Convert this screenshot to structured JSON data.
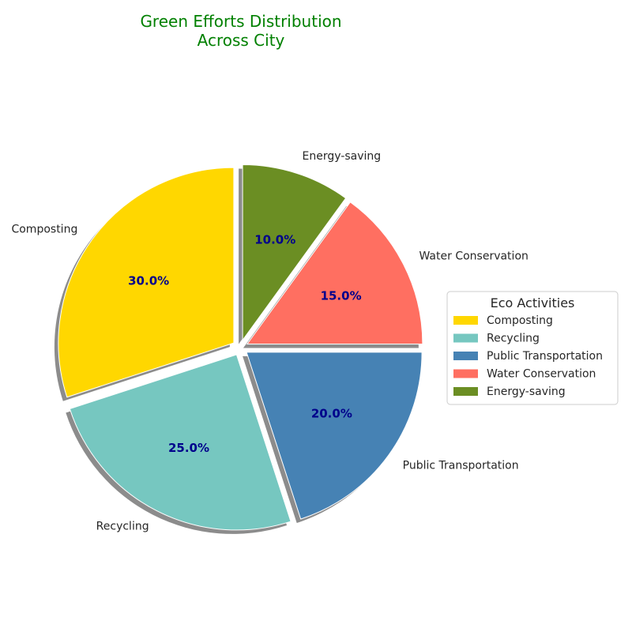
{
  "chart_data": {
    "type": "pie",
    "title": [
      "Green Efforts Distribution",
      "Across City"
    ],
    "title_color": "#008000",
    "categories": [
      "Composting",
      "Recycling",
      "Public Transportation",
      "Water Conservation",
      "Energy-saving"
    ],
    "values": [
      30,
      25,
      20,
      15,
      10
    ],
    "percent_labels": [
      "30.0%",
      "25.0%",
      "20.0%",
      "15.0%",
      "10.0%"
    ],
    "colors": [
      "#ffd700",
      "#76c7c0",
      "#4682b4",
      "#ff6f61",
      "#6b8e23"
    ],
    "percent_label_color": "#00008b",
    "exploded": true,
    "shadow": true,
    "start_angle_deg": 90,
    "direction": "counterclockwise",
    "legend": {
      "title": "Eco Activities",
      "entries": [
        "Composting",
        "Recycling",
        "Public Transportation",
        "Water Conservation",
        "Energy-saving"
      ],
      "placement": "center-right"
    }
  }
}
